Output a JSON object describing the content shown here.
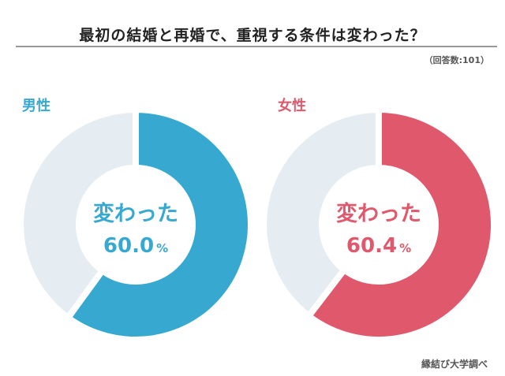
{
  "title": "最初の結婚と再婚で、重視する条件は変わった？",
  "respondents": "（回答数:101）",
  "source": "縁結び大学調べ",
  "chart_data": [
    {
      "type": "pie",
      "variant": "donut",
      "title": "男性",
      "center_label": "変わった",
      "value_text": "60.0",
      "unit": "%",
      "slices": [
        {
          "name": "変わった",
          "value": 60.0
        },
        {
          "value": 40.0
        }
      ],
      "colors": [
        "#37a9d0",
        "#e6edf2"
      ],
      "accent": "#37a9d0"
    },
    {
      "type": "pie",
      "variant": "donut",
      "title": "女性",
      "center_label": "変わった",
      "value_text": "60.4",
      "unit": "%",
      "slices": [
        {
          "name": "変わった",
          "value": 60.4
        },
        {
          "value": 39.6
        }
      ],
      "colors": [
        "#e0586c",
        "#e6edf2"
      ],
      "accent": "#e0586c"
    }
  ]
}
